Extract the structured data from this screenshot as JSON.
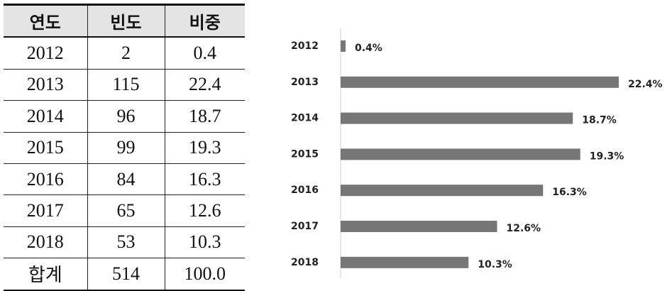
{
  "table": {
    "header": [
      "연도",
      "빈도",
      "비중"
    ],
    "rows": [
      [
        "2012",
        "2",
        "0.4"
      ],
      [
        "2013",
        "115",
        "22.4"
      ],
      [
        "2014",
        "96",
        "18.7"
      ],
      [
        "2015",
        "99",
        "19.3"
      ],
      [
        "2016",
        "84",
        "16.3"
      ],
      [
        "2017",
        "65",
        "12.6"
      ],
      [
        "2018",
        "53",
        "10.3"
      ],
      [
        "합계",
        "514",
        "100.0"
      ]
    ]
  },
  "chart_data": {
    "type": "hbar",
    "categories": [
      "2012",
      "2013",
      "2014",
      "2015",
      "2016",
      "2017",
      "2018"
    ],
    "values": [
      0.4,
      22.4,
      18.7,
      19.3,
      16.3,
      12.6,
      10.3
    ],
    "value_labels": [
      "0.4%",
      "22.4%",
      "18.7%",
      "19.3%",
      "16.3%",
      "12.6%",
      "10.3%"
    ],
    "color": "#767676"
  }
}
